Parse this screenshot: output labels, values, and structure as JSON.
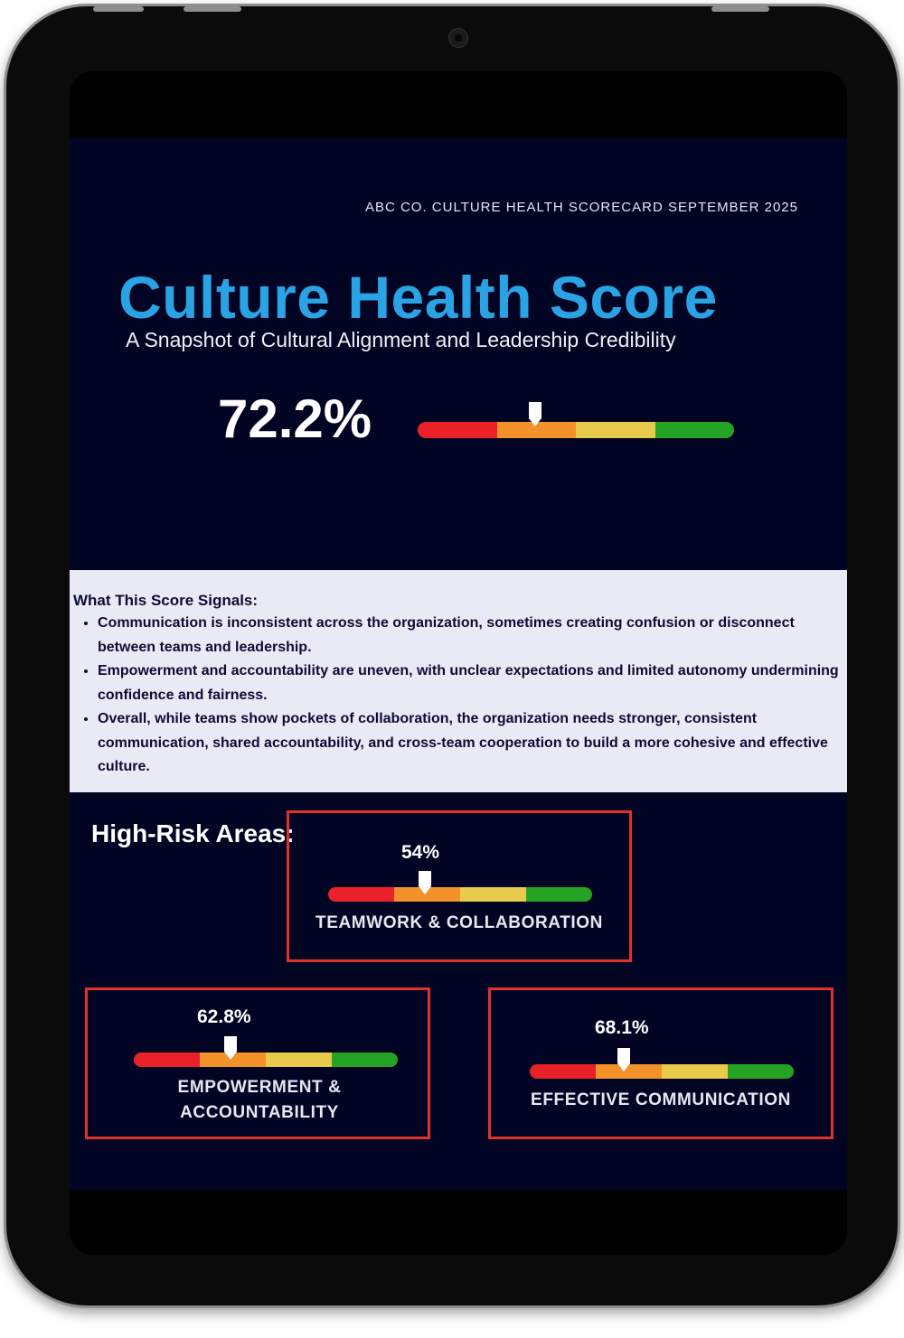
{
  "header": {
    "scorecard_line": "ABC CO. CULTURE HEALTH SCORECARD SEPTEMBER 2025",
    "title": "Culture Health Score",
    "subtitle": "A Snapshot of Cultural Alignment and Leadership Credibility"
  },
  "overall": {
    "score_text": "72.2%",
    "gauge_value": 0.372
  },
  "signals": {
    "title": "What This Score Signals:",
    "items": [
      "Communication is inconsistent across the organization, sometimes creating confusion or disconnect between teams and leadership.",
      "Empowerment and accountability are uneven, with unclear expectations and limited autonomy undermining confidence and fairness.",
      "Overall, while teams show pockets of collaboration, the organization needs stronger, consistent communication, shared accountability, and cross-team cooperation to build a more cohesive and effective culture."
    ]
  },
  "high_risk": {
    "title": "High-Risk Areas:",
    "areas": [
      {
        "percent_text": "54%",
        "label": "TEAMWORK & COLLABORATION",
        "gauge_value": 0.365
      },
      {
        "percent_text": "62.8%",
        "label": "EMPOWERMENT & ACCOUNTABILITY",
        "gauge_value": 0.365
      },
      {
        "percent_text": "68.1%",
        "label": "EFFECTIVE COMMUNICATION",
        "gauge_value": 0.355
      }
    ]
  },
  "colors": {
    "background": "#020423",
    "title_blue": "#2aa3e5",
    "signals_bg": "#eaeaf7",
    "card_border": "#e0322c",
    "gauge_red": "#ea2128",
    "gauge_orange": "#f3912b",
    "gauge_yellow": "#e8cb4c",
    "gauge_green": "#25a324"
  }
}
